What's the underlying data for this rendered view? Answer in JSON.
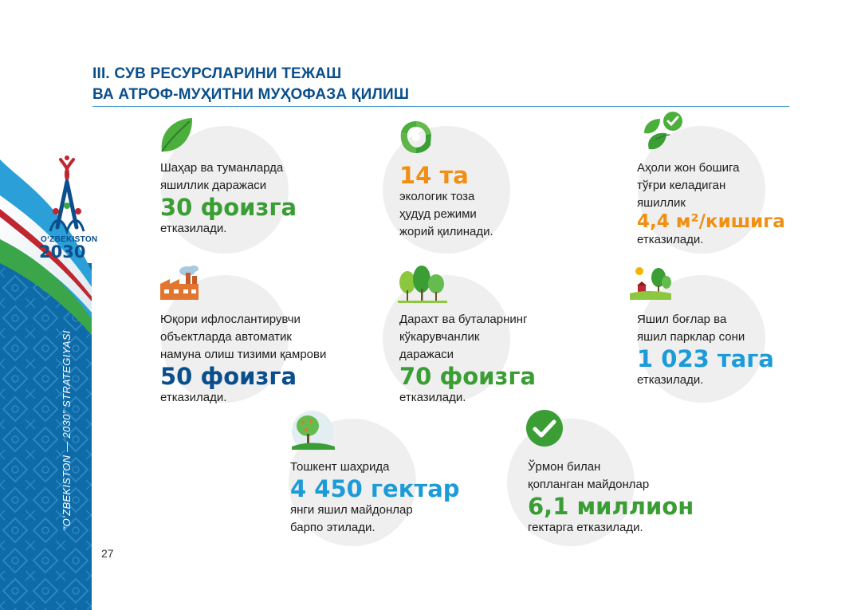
{
  "header": {
    "title_line1": "III.  СУВ РЕСУРСЛАРИНИ ТЕЖАШ",
    "title_line2": "ВА АТРОФ-МУҲИТНИ МУҲОФАЗА ҚИЛИШ"
  },
  "sidebar": {
    "logo_text": "OʻZBEKISTON",
    "logo_year": "2030",
    "vertical_caption": "“OʻZBEKISTON — 2030” STRATEGIYASI"
  },
  "page_number": "27",
  "colors": {
    "navy": "#0a4f8c",
    "green": "#3a9e35",
    "orange": "#f08f12",
    "cyan": "#1b9bd7"
  },
  "cards": [
    {
      "icon": "leaf-icon",
      "lines_before": [
        "Шаҳар ва туманларда",
        "яшиллик даражаси"
      ],
      "value": "30 фоизга",
      "lines_after": [
        "етказилади."
      ]
    },
    {
      "icon": "recycle-icon",
      "lines_before": [],
      "value": "14 та",
      "lines_after": [
        "экологик тоза",
        "ҳудуд режими",
        "жорий қилинади."
      ]
    },
    {
      "icon": "leaves-check-icon",
      "lines_before": [
        "Аҳоли жон бошига",
        "тўғри келадиган",
        "яшиллик"
      ],
      "value": "4,4 м²/кишига",
      "lines_after": [
        "етказилади."
      ]
    },
    {
      "icon": "factory-icon",
      "lines_before": [
        "Юқори ифлослантирувчи",
        "объектларда автоматик",
        "намуна олиш тизими қамрови"
      ],
      "value": "50 фоизга",
      "lines_after": [
        "етказилади."
      ]
    },
    {
      "icon": "trees-icon",
      "lines_before": [
        "Дарахт ва буталарнинг",
        "кўкарувчанлик",
        "даражаси"
      ],
      "value": "70 фоизга",
      "lines_after": [
        "етказилади."
      ]
    },
    {
      "icon": "park-icon",
      "lines_before": [
        "Яшил боғлар ва",
        "яшил парклар сони"
      ],
      "value": "1 023 тага",
      "lines_after": [
        "етказилади."
      ]
    },
    {
      "icon": "garden-tree-icon",
      "lines_before": [
        "Тошкент шаҳрида"
      ],
      "value": "4 450 гектар",
      "lines_after": [
        "янги яшил майдонлар",
        "барпо этилади."
      ]
    },
    {
      "icon": "check-circle-icon",
      "lines_before": [
        "Ўрмон билан",
        "қопланган майдонлар"
      ],
      "value": "6,1 миллион",
      "lines_after": [
        "гектарга етказилади."
      ]
    }
  ]
}
